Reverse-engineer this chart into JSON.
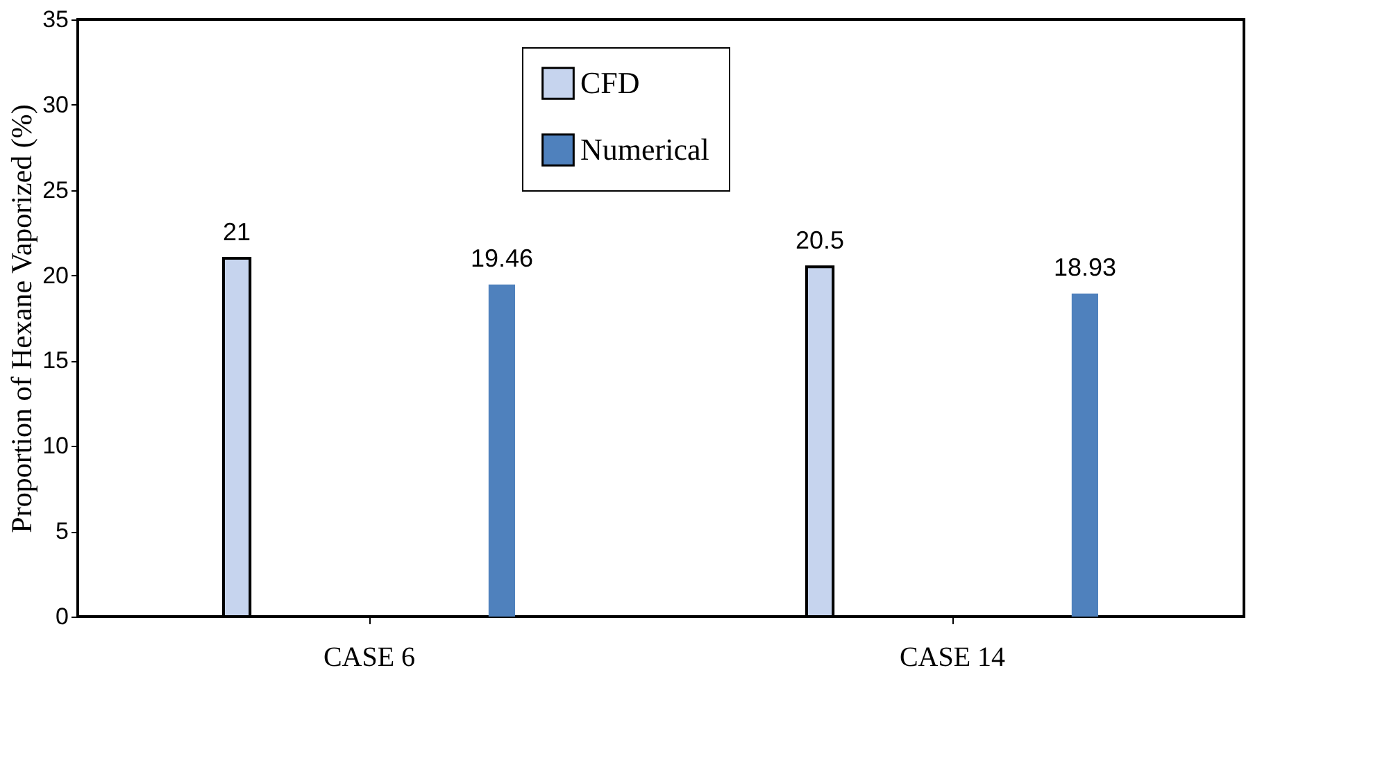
{
  "chart_data": {
    "type": "bar",
    "ylabel": "Proportion of Hexane Vaporized (%)",
    "categories": [
      "CASE 6",
      "CASE 14"
    ],
    "series": [
      {
        "name": "CFD",
        "color": "#c6d4ee",
        "values": [
          21,
          20.5
        ]
      },
      {
        "name": "Numerical",
        "color": "#4f81bd",
        "values": [
          19.46,
          18.93
        ]
      }
    ],
    "ylim": [
      0,
      35
    ],
    "yticks": [
      0,
      5,
      10,
      15,
      20,
      25,
      30,
      35
    ],
    "data_labels": true,
    "legend": "top",
    "grid": false
  }
}
